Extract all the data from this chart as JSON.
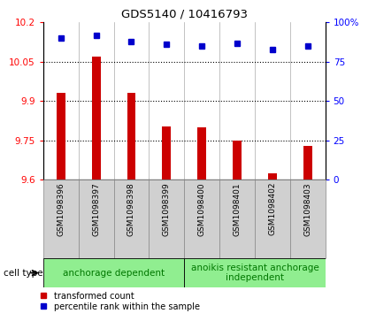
{
  "title": "GDS5140 / 10416793",
  "samples": [
    "GSM1098396",
    "GSM1098397",
    "GSM1098398",
    "GSM1098399",
    "GSM1098400",
    "GSM1098401",
    "GSM1098402",
    "GSM1098403"
  ],
  "bar_values": [
    9.93,
    10.07,
    9.93,
    9.805,
    9.8,
    9.75,
    9.625,
    9.73
  ],
  "dot_values": [
    90,
    92,
    88,
    86,
    85,
    87,
    83,
    85
  ],
  "ylim_left": [
    9.6,
    10.2
  ],
  "ylim_right": [
    0,
    100
  ],
  "yticks_left": [
    9.6,
    9.75,
    9.9,
    10.05,
    10.2
  ],
  "yticks_left_labels": [
    "9.6",
    "9.75",
    "9.9",
    "10.05",
    "10.2"
  ],
  "yticks_right": [
    0,
    25,
    50,
    75,
    100
  ],
  "yticks_right_labels": [
    "0",
    "25",
    "50",
    "75",
    "100%"
  ],
  "bar_color": "#cc0000",
  "dot_color": "#0000cc",
  "group1_label": "anchorage dependent",
  "group2_label": "anoikis resistant anchorage\nindependent",
  "group_color": "#90ee90",
  "group_text_color": "#007700",
  "legend_red_label": "transformed count",
  "legend_blue_label": "percentile rank within the sample",
  "cell_type_label": "cell type",
  "sample_bg_color": "#d0d0d0",
  "plot_bg": "#ffffff",
  "bar_width": 0.25
}
